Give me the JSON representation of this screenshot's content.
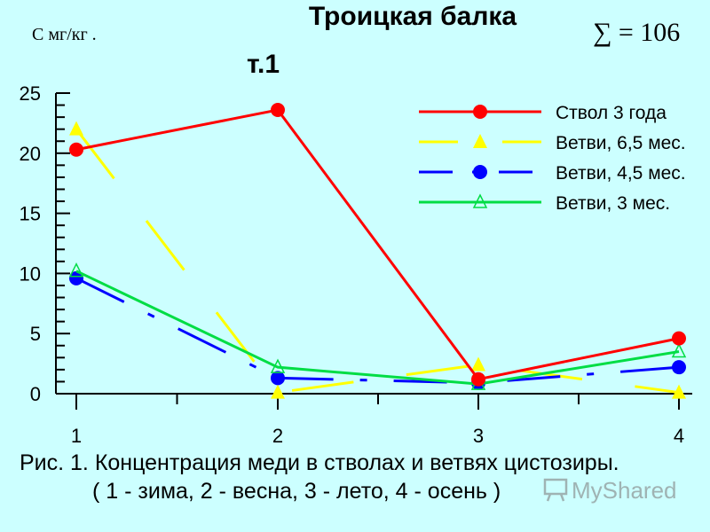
{
  "header": {
    "title": "Троицкая балка",
    "unit_label": "С мг/кг .",
    "sum_label": "∑ = 106",
    "point_label": "т.1"
  },
  "caption": {
    "line1": "Рис. 1. Концентрация меди в стволах и ветвях цистозиры.",
    "line2": "( 1 - зима, 2 - весна, 3 - лето, 4 - осень )"
  },
  "watermark": {
    "text": "MyShared",
    "icon": "presentation-board-icon"
  },
  "chart_data": {
    "type": "line",
    "categories": [
      "1",
      "2",
      "3",
      "4"
    ],
    "ylim": [
      0,
      25
    ],
    "yticks": [
      "0",
      "5",
      "10",
      "15",
      "20",
      "25"
    ],
    "grid": false,
    "legend_position": "top-right",
    "series": [
      {
        "name": "Ствол 3 года",
        "values": [
          20.3,
          23.6,
          1.2,
          4.6
        ],
        "color": "#ff0000",
        "marker": "circle",
        "dash": "solid"
      },
      {
        "name": "Ветви, 6,5 мес.",
        "values": [
          22.0,
          0.1,
          2.4,
          0.1
        ],
        "color": "#ffff00",
        "marker": "triangle",
        "dash": "long-dash"
      },
      {
        "name": "Ветви, 4,5 мес.",
        "values": [
          9.6,
          1.3,
          0.9,
          2.2
        ],
        "color": "#0000ff",
        "marker": "circle",
        "dash": "dash-dot"
      },
      {
        "name": "Ветви, 3 мес.",
        "values": [
          10.2,
          2.2,
          0.8,
          3.5
        ],
        "color": "#00dd44",
        "marker": "triangle-open",
        "dash": "solid"
      }
    ]
  }
}
